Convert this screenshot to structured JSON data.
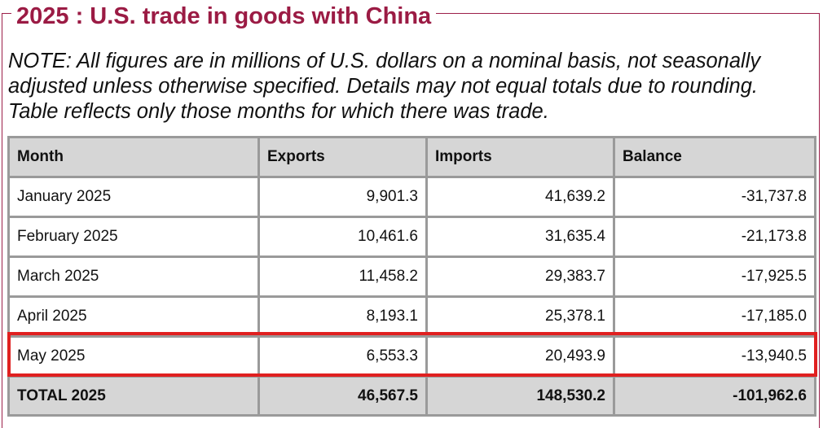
{
  "title": "2025 : U.S. trade in goods with China",
  "note": [
    "NOTE: All figures are in millions of U.S. dollars on a nominal basis, not seasonally",
    "adjusted unless otherwise specified. Details may not equal totals due to rounding.",
    "Table reflects only those months for which there was trade."
  ],
  "table": {
    "headers": [
      "Month",
      "Exports",
      "Imports",
      "Balance"
    ],
    "rows": [
      [
        "January 2025",
        "9,901.3",
        "41,639.2",
        "-31,737.8"
      ],
      [
        "February 2025",
        "10,461.6",
        "31,635.4",
        "-21,173.8"
      ],
      [
        "March 2025",
        "11,458.2",
        "29,383.7",
        "-17,925.5"
      ],
      [
        "April 2025",
        "8,193.1",
        "25,378.1",
        "-17,185.0"
      ],
      [
        "May 2025",
        "6,553.3",
        "20,493.9",
        "-13,940.5"
      ]
    ],
    "total": [
      "TOTAL 2025",
      "46,567.5",
      "148,530.2",
      "-101,962.6"
    ]
  },
  "colors": {
    "title": "#9b1b44",
    "header_bg": "#d6d6d6",
    "grid": "#9a9a9a",
    "highlight": "#e02020"
  }
}
